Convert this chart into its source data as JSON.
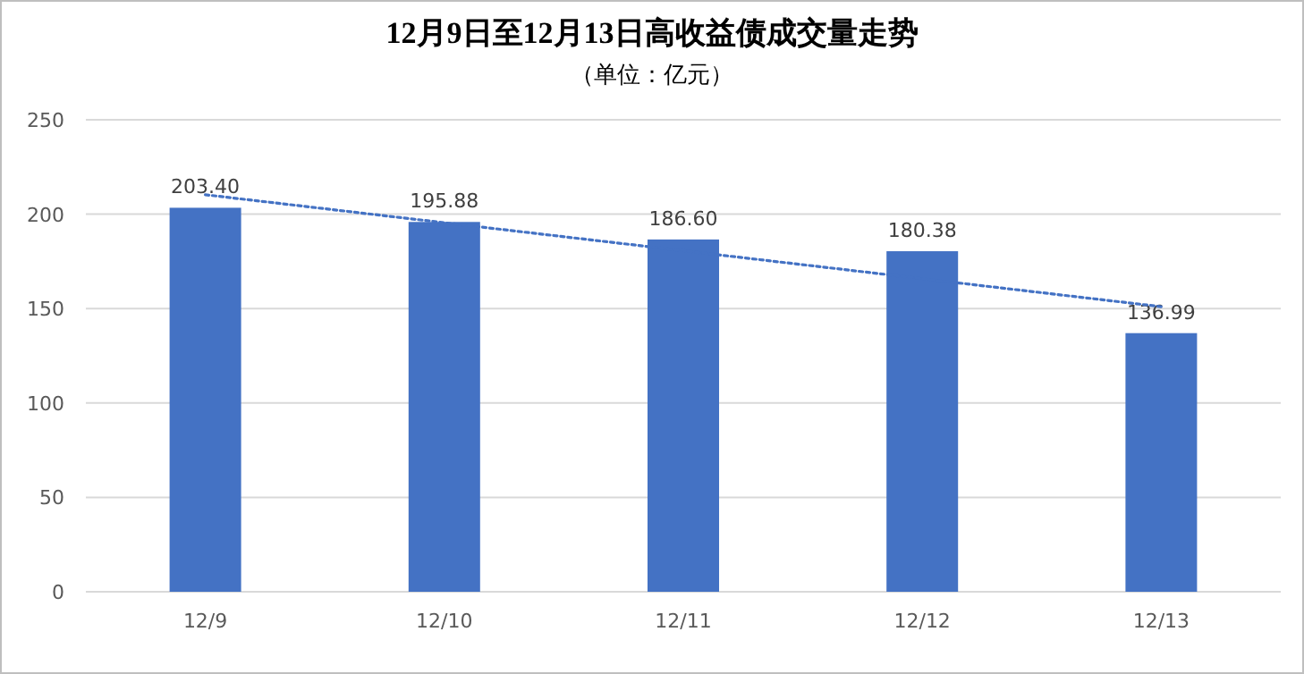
{
  "chart_data": {
    "type": "bar",
    "title": "12月9日至12月13日高收益债成交量走势",
    "subtitle": "（单位：亿元）",
    "categories": [
      "12/9",
      "12/10",
      "12/11",
      "12/12",
      "12/13"
    ],
    "series": [
      {
        "color": "#4472c4",
        "values": [
          203.4,
          195.88,
          186.6,
          180.38,
          136.99
        ],
        "value_labels": [
          "203.40",
          "195.88",
          "186.60",
          "180.38",
          "136.99"
        ]
      },
      {
        "type": "line",
        "color": "#4472c4",
        "line_style": "dotted",
        "x": [
          "12/9",
          "12/13"
        ],
        "values": [
          210.3,
          151.0
        ]
      }
    ],
    "ylim": [
      0,
      250
    ],
    "yticks": [
      0,
      50,
      100,
      150,
      200,
      250
    ],
    "grid": "y"
  }
}
